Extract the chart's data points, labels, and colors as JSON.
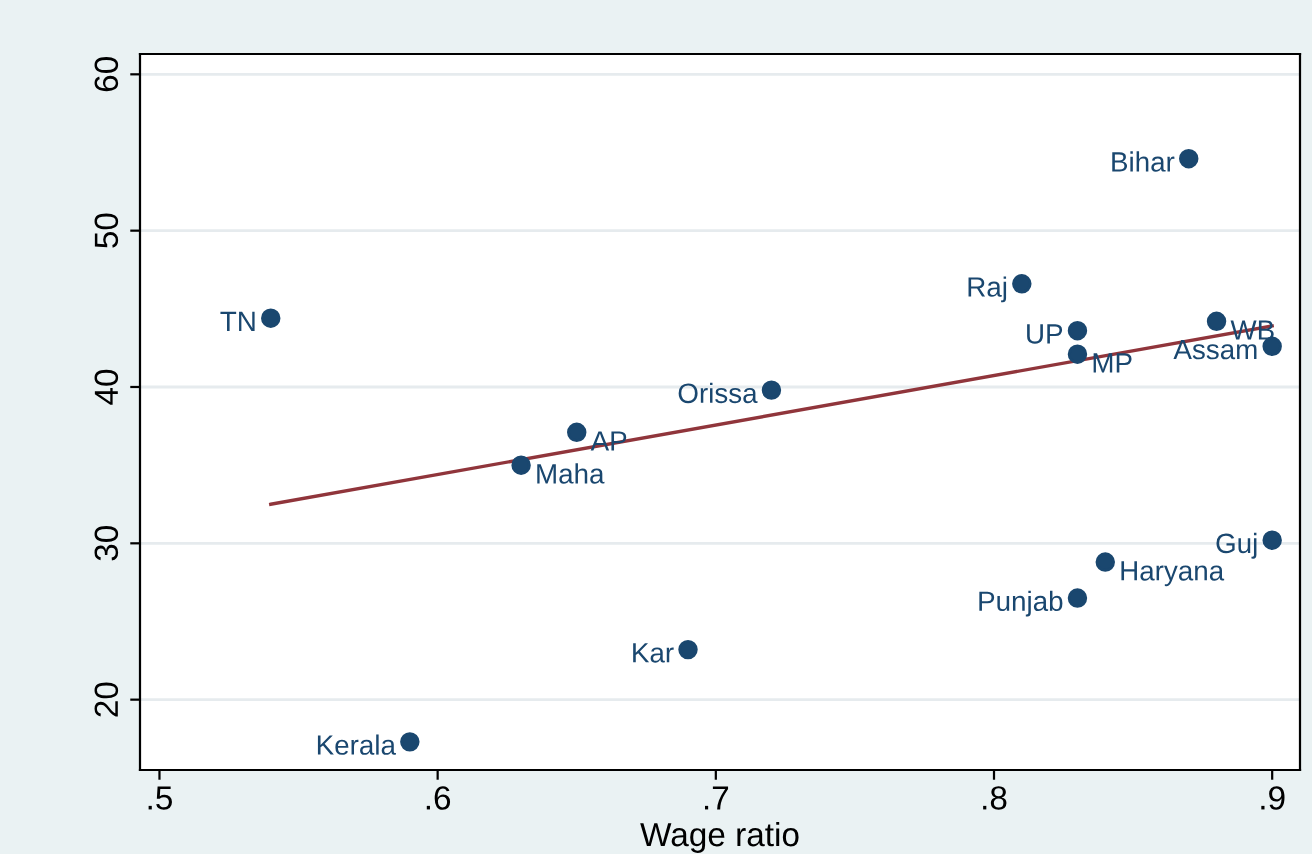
{
  "chart_data": {
    "type": "scatter",
    "xlabel": "Wage ratio",
    "xlim": [
      0.493,
      0.91
    ],
    "ylim": [
      15.5,
      61.3
    ],
    "xticks": [
      {
        "value": 0.5,
        "label": ".5"
      },
      {
        "value": 0.6,
        "label": ".6"
      },
      {
        "value": 0.7,
        "label": ".7"
      },
      {
        "value": 0.8,
        "label": ".8"
      },
      {
        "value": 0.9,
        "label": ".9"
      }
    ],
    "yticks": [
      20,
      30,
      40,
      50,
      60
    ],
    "grid": "y",
    "series": [
      {
        "marker": "circle",
        "color": "#1a476f",
        "x": [
          0.54,
          0.59,
          0.63,
          0.65,
          0.69,
          0.72,
          0.81,
          0.83,
          0.83,
          0.87,
          0.88,
          0.9,
          0.9,
          0.84,
          0.83
        ],
        "values": [
          44.4,
          17.3,
          35.0,
          37.1,
          23.2,
          39.8,
          46.6,
          43.6,
          42.1,
          54.6,
          44.2,
          42.6,
          30.2,
          28.8,
          26.5
        ],
        "value_labels": [
          "TN",
          "Kerala",
          "Maha",
          "AP",
          "Kar",
          "Orissa",
          "Raj",
          "UP",
          "MP",
          "Bihar",
          "WB",
          "Assam",
          "Guj",
          "Haryana",
          "Punjab"
        ]
      },
      {
        "type": "line",
        "color": "#90353b",
        "x": [
          0.54,
          0.9
        ],
        "values": [
          32.5,
          43.9
        ]
      }
    ]
  }
}
